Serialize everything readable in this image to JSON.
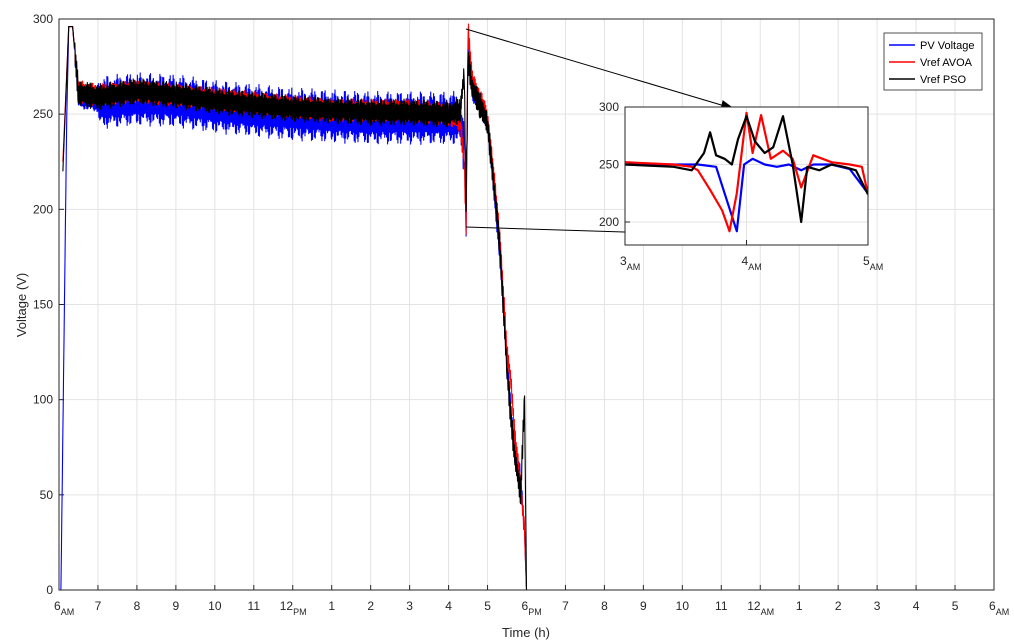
{
  "chart_data": [
    {
      "type": "line",
      "xlabel": "Time (h)",
      "ylabel": "Voltage (V)",
      "xlim": [
        6,
        30
      ],
      "ylim": [
        0,
        300
      ],
      "x_ticks": [
        {
          "v": 6,
          "t": "6",
          "s": "AM"
        },
        {
          "v": 7,
          "t": "7",
          "s": ""
        },
        {
          "v": 8,
          "t": "8",
          "s": ""
        },
        {
          "v": 9,
          "t": "9",
          "s": ""
        },
        {
          "v": 10,
          "t": "10",
          "s": ""
        },
        {
          "v": 11,
          "t": "11",
          "s": ""
        },
        {
          "v": 12,
          "t": "12",
          "s": "PM"
        },
        {
          "v": 13,
          "t": "1",
          "s": ""
        },
        {
          "v": 14,
          "t": "2",
          "s": ""
        },
        {
          "v": 15,
          "t": "3",
          "s": ""
        },
        {
          "v": 16,
          "t": "4",
          "s": ""
        },
        {
          "v": 17,
          "t": "5",
          "s": ""
        },
        {
          "v": 18,
          "t": "6",
          "s": "PM"
        },
        {
          "v": 19,
          "t": "7",
          "s": ""
        },
        {
          "v": 20,
          "t": "8",
          "s": ""
        },
        {
          "v": 21,
          "t": "9",
          "s": ""
        },
        {
          "v": 22,
          "t": "10",
          "s": ""
        },
        {
          "v": 23,
          "t": "11",
          "s": ""
        },
        {
          "v": 24,
          "t": "12",
          "s": "AM"
        },
        {
          "v": 25,
          "t": "1",
          "s": ""
        },
        {
          "v": 26,
          "t": "2",
          "s": ""
        },
        {
          "v": 27,
          "t": "3",
          "s": ""
        },
        {
          "v": 28,
          "t": "4",
          "s": ""
        },
        {
          "v": 29,
          "t": "5",
          "s": ""
        },
        {
          "v": 30,
          "t": "6",
          "s": "AM"
        }
      ],
      "y_ticks": [
        0,
        50,
        100,
        150,
        200,
        250,
        300
      ],
      "grid": true,
      "legend_position": "top-right",
      "series": [
        {
          "name": "PV Voltage",
          "color": "#0000ff",
          "x": [
            6,
            6.05,
            6.2,
            6.25,
            6.35,
            6.5,
            7,
            8,
            9,
            10,
            11,
            12,
            13,
            14,
            15,
            16,
            16.3,
            16.4,
            16.45,
            16.5,
            16.6,
            16.8,
            17,
            17.3,
            17.5,
            17.7,
            17.85,
            17.95,
            18.0,
            18.05,
            30
          ],
          "y": [
            0,
            0,
            250,
            296,
            296,
            258,
            256,
            258,
            257,
            254,
            252,
            250,
            249,
            248,
            248,
            248,
            248,
            230,
            190,
            290,
            262,
            255,
            245,
            180,
            120,
            70,
            60,
            30,
            0,
            0,
            0
          ]
        },
        {
          "name": "Vref AVOA",
          "color": "#ff0000",
          "x": [
            6.1,
            6.25,
            6.35,
            6.5,
            7,
            8,
            9,
            10,
            11,
            12,
            13,
            14,
            15,
            16,
            16.3,
            16.4,
            16.45,
            16.5,
            16.6,
            16.8,
            17,
            17.3,
            17.5,
            17.6,
            17.7,
            17.85,
            17.95,
            18.0,
            18.05,
            30
          ],
          "y": [
            225,
            296,
            296,
            262,
            260,
            262,
            260,
            258,
            256,
            254,
            252,
            252,
            252,
            250,
            246,
            225,
            190,
            296,
            268,
            258,
            248,
            190,
            125,
            110,
            80,
            55,
            30,
            0,
            0,
            0
          ]
        },
        {
          "name": "Vref PSO",
          "color": "#000000",
          "x": [
            6.1,
            6.25,
            6.35,
            6.5,
            7,
            8,
            9,
            10,
            11,
            12,
            13,
            14,
            15,
            16,
            16.3,
            16.4,
            16.45,
            16.5,
            16.6,
            16.8,
            17,
            17.3,
            17.5,
            17.6,
            17.7,
            17.85,
            17.95,
            18.0,
            18.05,
            30
          ],
          "y": [
            220,
            296,
            296,
            261,
            259,
            262,
            260,
            257,
            255,
            253,
            252,
            251,
            251,
            250,
            252,
            272,
            205,
            280,
            264,
            255,
            245,
            185,
            115,
            90,
            70,
            50,
            102,
            0,
            0,
            0
          ]
        }
      ]
    },
    {
      "type": "line",
      "title": "",
      "xlim": [
        3,
        5
      ],
      "ylim": [
        180,
        300
      ],
      "x_ticks": [
        {
          "v": 3,
          "t": "3",
          "s": "AM"
        },
        {
          "v": 4,
          "t": "4",
          "s": "AM"
        },
        {
          "v": 5,
          "t": "5",
          "s": "AM"
        }
      ],
      "y_ticks": [
        200,
        250,
        300
      ],
      "grid": true,
      "series": [
        {
          "name": "PV Voltage",
          "color": "#0000ff",
          "x": [
            3.0,
            3.6,
            3.75,
            3.85,
            3.92,
            3.98,
            4.05,
            4.15,
            4.25,
            4.35,
            4.45,
            4.55,
            4.7,
            4.85,
            5.0
          ],
          "y": [
            250,
            250,
            248,
            215,
            192,
            250,
            255,
            250,
            248,
            250,
            245,
            250,
            250,
            246,
            225
          ]
        },
        {
          "name": "Vref AVOA",
          "color": "#ff0000",
          "x": [
            3.0,
            3.4,
            3.55,
            3.6,
            3.7,
            3.8,
            3.86,
            3.92,
            4.0,
            4.05,
            4.12,
            4.2,
            4.3,
            4.38,
            4.45,
            4.55,
            4.7,
            4.85,
            4.95,
            5.0
          ],
          "y": [
            252,
            250,
            248,
            245,
            228,
            210,
            192,
            225,
            295,
            260,
            293,
            255,
            262,
            255,
            230,
            258,
            252,
            250,
            248,
            224
          ]
        },
        {
          "name": "Vref PSO",
          "color": "#000000",
          "x": [
            3.0,
            3.4,
            3.55,
            3.65,
            3.7,
            3.75,
            3.82,
            3.88,
            3.93,
            4.0,
            4.07,
            4.15,
            4.22,
            4.3,
            4.38,
            4.45,
            4.5,
            4.6,
            4.7,
            4.8,
            4.9,
            5.0
          ],
          "y": [
            250,
            248,
            245,
            260,
            278,
            258,
            255,
            250,
            272,
            292,
            270,
            260,
            265,
            292,
            250,
            200,
            248,
            245,
            250,
            248,
            245,
            224
          ]
        }
      ]
    }
  ]
}
